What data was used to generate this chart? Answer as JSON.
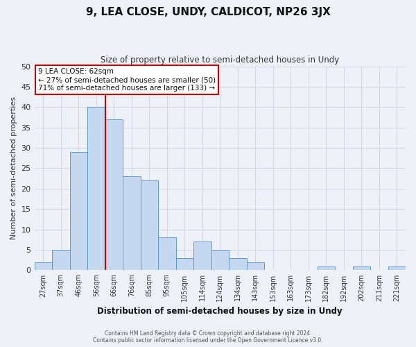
{
  "title": "9, LEA CLOSE, UNDY, CALDICOT, NP26 3JX",
  "subtitle": "Size of property relative to semi-detached houses in Undy",
  "xlabel": "Distribution of semi-detached houses by size in Undy",
  "ylabel": "Number of semi-detached properties",
  "bar_labels": [
    "27sqm",
    "37sqm",
    "46sqm",
    "56sqm",
    "66sqm",
    "76sqm",
    "85sqm",
    "95sqm",
    "105sqm",
    "114sqm",
    "124sqm",
    "134sqm",
    "143sqm",
    "153sqm",
    "163sqm",
    "173sqm",
    "182sqm",
    "192sqm",
    "202sqm",
    "211sqm",
    "221sqm"
  ],
  "bar_values": [
    2,
    5,
    29,
    40,
    37,
    23,
    22,
    8,
    3,
    7,
    5,
    3,
    2,
    0,
    0,
    0,
    1,
    0,
    1,
    0,
    1
  ],
  "bar_color": "#c5d8f0",
  "bar_edge_color": "#5b9bd5",
  "grid_color": "#d0d8e8",
  "background_color": "#eef2f8",
  "ylim": [
    0,
    50
  ],
  "yticks": [
    0,
    5,
    10,
    15,
    20,
    25,
    30,
    35,
    40,
    45,
    50
  ],
  "vline_x_index": 3,
  "vline_color": "#cc0000",
  "annotation_title": "9 LEA CLOSE: 62sqm",
  "annotation_line2": "← 27% of semi-detached houses are smaller (50)",
  "annotation_line3": "71% of semi-detached houses are larger (133) →",
  "annotation_box_color": "#ffffff",
  "annotation_box_edge": "#cc0000",
  "footer_line1": "Contains HM Land Registry data © Crown copyright and database right 2024.",
  "footer_line2": "Contains public sector information licensed under the Open Government Licence v3.0."
}
